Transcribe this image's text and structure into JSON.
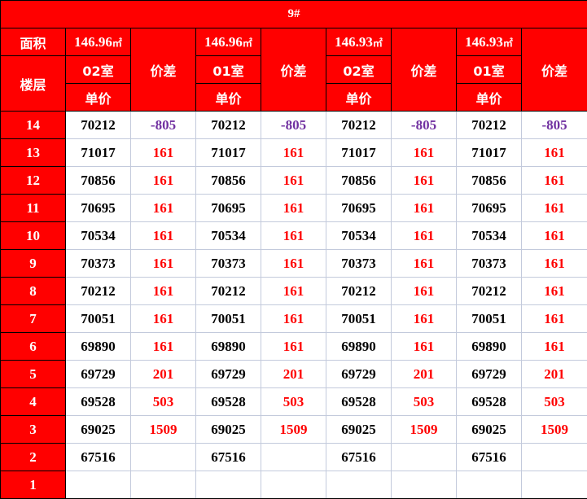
{
  "title": "9#",
  "header": {
    "area_label": "面积",
    "floor_label": "楼层",
    "diff_label": "价差",
    "unit_price_label": "单价",
    "unit": "㎡",
    "groups": [
      {
        "area": "146.96",
        "room": "02室"
      },
      {
        "area": "146.96",
        "room": "01室"
      },
      {
        "area": "146.93",
        "room": "02室"
      },
      {
        "area": "146.93",
        "room": "01室"
      }
    ]
  },
  "colors": {
    "header_bg": "#ff0000",
    "positive_diff": "#ff0000",
    "negative_diff": "#7030a0"
  },
  "rows": [
    {
      "floor": "14",
      "price": "70212",
      "diff": "-805"
    },
    {
      "floor": "13",
      "price": "71017",
      "diff": "161"
    },
    {
      "floor": "12",
      "price": "70856",
      "diff": "161"
    },
    {
      "floor": "11",
      "price": "70695",
      "diff": "161"
    },
    {
      "floor": "10",
      "price": "70534",
      "diff": "161"
    },
    {
      "floor": "9",
      "price": "70373",
      "diff": "161"
    },
    {
      "floor": "8",
      "price": "70212",
      "diff": "161"
    },
    {
      "floor": "7",
      "price": "70051",
      "diff": "161"
    },
    {
      "floor": "6",
      "price": "69890",
      "diff": "161"
    },
    {
      "floor": "5",
      "price": "69729",
      "diff": "201"
    },
    {
      "floor": "4",
      "price": "69528",
      "diff": "503"
    },
    {
      "floor": "3",
      "price": "69025",
      "diff": "1509"
    },
    {
      "floor": "2",
      "price": "67516",
      "diff": ""
    },
    {
      "floor": "1",
      "price": "",
      "diff": ""
    }
  ]
}
